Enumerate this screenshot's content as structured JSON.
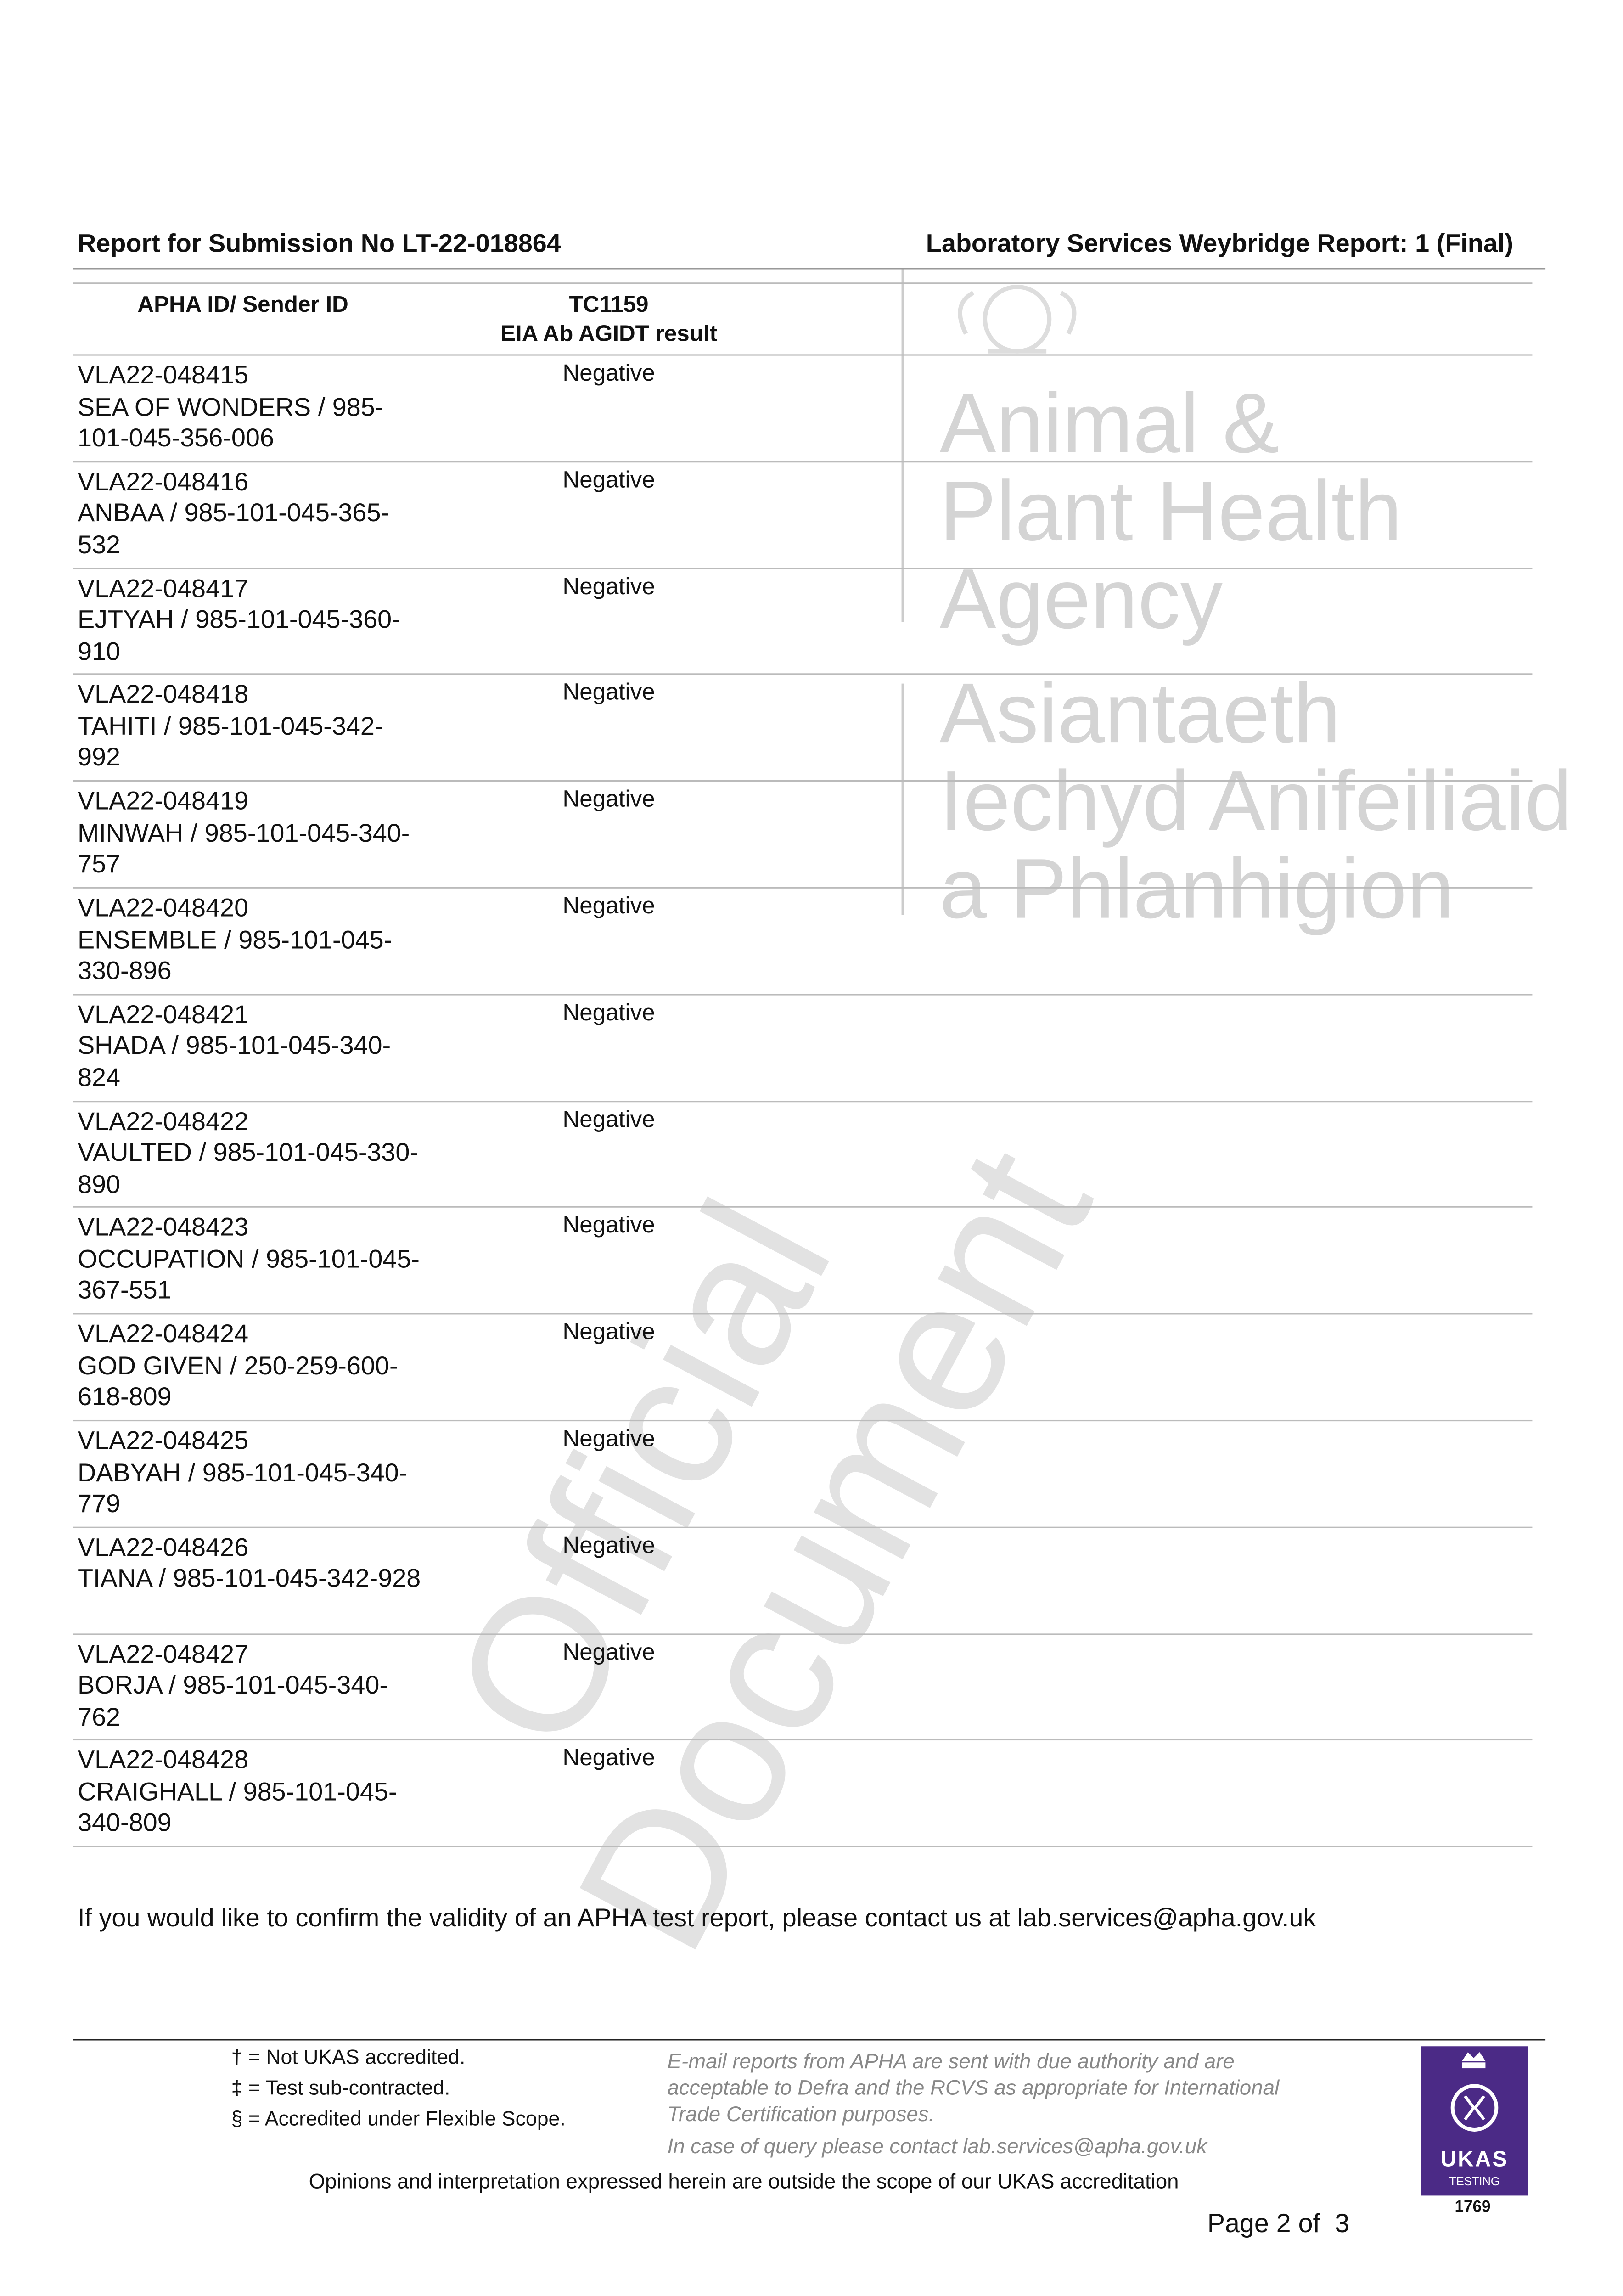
{
  "header": {
    "left": "Report for Submission No LT-22-018864",
    "right": "Laboratory Services Weybridge Report: 1 (Final)"
  },
  "watermark": {
    "agency_en": [
      "Animal &",
      "Plant Health",
      "Agency"
    ],
    "agency_cy": [
      "Asiantaeth",
      "Iechyd Anifeiliaid",
      "a Phlanhigion"
    ],
    "stamp": [
      "Official",
      "Document"
    ]
  },
  "table": {
    "headers": {
      "id": "APHA ID/ Sender ID",
      "test_code": "TC1159",
      "test_name": "EIA Ab AGIDT result"
    },
    "rows": [
      {
        "id": "VLA22-048415",
        "sender": "SEA OF WONDERS / 985-101-045-356-006",
        "result": "Negative"
      },
      {
        "id": "VLA22-048416",
        "sender": "ANBAA / 985-101-045-365-532",
        "result": "Negative"
      },
      {
        "id": "VLA22-048417",
        "sender": "EJTYAH / 985-101-045-360-910",
        "result": "Negative"
      },
      {
        "id": "VLA22-048418",
        "sender": "TAHITI / 985-101-045-342-992",
        "result": "Negative"
      },
      {
        "id": "VLA22-048419",
        "sender": "MINWAH / 985-101-045-340-757",
        "result": "Negative"
      },
      {
        "id": "VLA22-048420",
        "sender": "ENSEMBLE / 985-101-045-330-896",
        "result": "Negative"
      },
      {
        "id": "VLA22-048421",
        "sender": "SHADA / 985-101-045-340-824",
        "result": "Negative"
      },
      {
        "id": "VLA22-048422",
        "sender": "VAULTED / 985-101-045-330-890",
        "result": "Negative"
      },
      {
        "id": "VLA22-048423",
        "sender": "OCCUPATION / 985-101-045-367-551",
        "result": "Negative"
      },
      {
        "id": "VLA22-048424",
        "sender": "GOD GIVEN / 250-259-600-618-809",
        "result": "Negative"
      },
      {
        "id": "VLA22-048425",
        "sender": "DABYAH / 985-101-045-340-779",
        "result": "Negative"
      },
      {
        "id": "VLA22-048426",
        "sender": "TIANA / 985-101-045-342-928",
        "result": "Negative"
      },
      {
        "id": "VLA22-048427",
        "sender": "BORJA / 985-101-045-340-762",
        "result": "Negative"
      },
      {
        "id": "VLA22-048428",
        "sender": "CRAIGHALL / 985-101-045-340-809",
        "result": "Negative"
      }
    ]
  },
  "confirm_text": "If you would like to confirm the validity of an APHA test report, please contact us at lab.services@apha.gov.uk",
  "footer": {
    "legend": [
      "† = Not UKAS accredited.",
      "‡ = Test sub-contracted.",
      "§ = Accredited under Flexible Scope."
    ],
    "note": [
      "E-mail reports from APHA are sent with due authority and are",
      "acceptable to Defra and the RCVS as appropriate for International",
      "Trade Certification purposes."
    ],
    "query": "In case of query please contact lab.services@apha.gov.uk",
    "disclaimer": "Opinions and interpretation expressed herein are outside the scope of our UKAS accreditation",
    "ukas": {
      "name": "UKAS",
      "sub": "TESTING",
      "number": "1769"
    },
    "page": "Page 2 of  3"
  }
}
